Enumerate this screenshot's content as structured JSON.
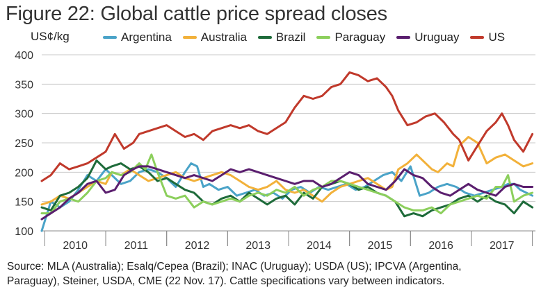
{
  "figure": {
    "title": "Figure 22: Global cattle price spread closes",
    "source_lines": [
      "Source: MLA (Australia); Esalq/Cepea (Brazil); INAC (Uruguay); USDA (US); IPCVA (Argentina,",
      "Paraguay), Steiner, USDA, CME (22 Nov. 17). Cattle specifications vary between indicators."
    ]
  },
  "chart_data": {
    "type": "line",
    "title": "Figure 22: Global cattle price spread closes",
    "ylabel": "US¢/kg",
    "xlabel": "",
    "ylim": [
      100,
      400
    ],
    "yticks": [
      100,
      150,
      200,
      250,
      300,
      350,
      400
    ],
    "xlim": [
      2009.45,
      2017.55
    ],
    "xticks": [
      "2010",
      "2011",
      "2012",
      "2013",
      "2014",
      "2015",
      "2016",
      "2017"
    ],
    "grid": "horizontal",
    "legend_position": "top",
    "series": [
      {
        "name": "Argentina",
        "color": "#4aa3c8",
        "x": [
          2009.45,
          2009.6,
          2009.75,
          2009.9,
          2010.05,
          2010.2,
          2010.35,
          2010.5,
          2010.6,
          2010.75,
          2010.9,
          2011.05,
          2011.2,
          2011.35,
          2011.5,
          2011.65,
          2011.8,
          2011.9,
          2012.0,
          2012.1,
          2012.2,
          2012.35,
          2012.5,
          2012.65,
          2012.8,
          2012.95,
          2013.1,
          2013.25,
          2013.4,
          2013.55,
          2013.7,
          2013.85,
          2014.0,
          2014.15,
          2014.3,
          2014.45,
          2014.6,
          2014.75,
          2014.9,
          2015.05,
          2015.2,
          2015.35,
          2015.5,
          2015.65,
          2015.8,
          2015.95,
          2016.1,
          2016.25,
          2016.4,
          2016.55,
          2016.7,
          2016.85,
          2017.0,
          2017.1,
          2017.2,
          2017.3,
          2017.4,
          2017.5
        ],
        "y": [
          100,
          150,
          140,
          150,
          170,
          195,
          185,
          205,
          195,
          180,
          185,
          200,
          205,
          200,
          190,
          175,
          200,
          215,
          210,
          175,
          180,
          170,
          175,
          160,
          165,
          170,
          160,
          165,
          155,
          170,
          175,
          165,
          175,
          170,
          175,
          180,
          170,
          175,
          185,
          195,
          200,
          185,
          210,
          160,
          165,
          175,
          180,
          175,
          165,
          160,
          165,
          170,
          175,
          180,
          180,
          170,
          165,
          160
        ]
      },
      {
        "name": "Australia",
        "color": "#f2b13a",
        "x": [
          2009.45,
          2009.6,
          2009.75,
          2009.9,
          2010.05,
          2010.2,
          2010.35,
          2010.5,
          2010.6,
          2010.75,
          2010.9,
          2011.05,
          2011.2,
          2011.35,
          2011.5,
          2011.65,
          2011.8,
          2011.95,
          2012.1,
          2012.25,
          2012.4,
          2012.55,
          2012.7,
          2012.85,
          2013.0,
          2013.15,
          2013.3,
          2013.45,
          2013.6,
          2013.75,
          2013.9,
          2014.05,
          2014.2,
          2014.35,
          2014.5,
          2014.65,
          2014.8,
          2014.95,
          2015.1,
          2015.2,
          2015.3,
          2015.45,
          2015.6,
          2015.75,
          2015.85,
          2015.95,
          2016.1,
          2016.2,
          2016.3,
          2016.45,
          2016.6,
          2016.75,
          2016.9,
          2017.05,
          2017.2,
          2017.35,
          2017.5
        ],
        "y": [
          145,
          150,
          160,
          155,
          165,
          175,
          185,
          180,
          200,
          195,
          205,
          195,
          185,
          190,
          195,
          200,
          190,
          185,
          190,
          195,
          200,
          195,
          185,
          175,
          170,
          175,
          185,
          170,
          165,
          170,
          160,
          150,
          165,
          175,
          180,
          185,
          190,
          180,
          170,
          175,
          205,
          215,
          230,
          215,
          205,
          200,
          215,
          210,
          245,
          260,
          250,
          215,
          225,
          230,
          220,
          210,
          215
        ]
      },
      {
        "name": "Brazil",
        "color": "#1e6b3a",
        "x": [
          2009.45,
          2009.6,
          2009.75,
          2009.9,
          2010.05,
          2010.2,
          2010.35,
          2010.5,
          2010.6,
          2010.75,
          2010.9,
          2011.05,
          2011.2,
          2011.35,
          2011.5,
          2011.65,
          2011.8,
          2011.95,
          2012.1,
          2012.25,
          2012.4,
          2012.55,
          2012.7,
          2012.85,
          2013.0,
          2013.15,
          2013.3,
          2013.45,
          2013.6,
          2013.75,
          2013.9,
          2014.05,
          2014.2,
          2014.35,
          2014.5,
          2014.65,
          2014.8,
          2014.95,
          2015.1,
          2015.25,
          2015.4,
          2015.55,
          2015.7,
          2015.85,
          2016.0,
          2016.15,
          2016.3,
          2016.45,
          2016.6,
          2016.75,
          2016.9,
          2017.05,
          2017.2,
          2017.35,
          2017.5
        ],
        "y": [
          140,
          135,
          160,
          165,
          175,
          190,
          220,
          205,
          210,
          215,
          205,
          210,
          200,
          185,
          190,
          180,
          170,
          165,
          150,
          145,
          155,
          160,
          150,
          165,
          155,
          145,
          155,
          160,
          145,
          165,
          155,
          175,
          180,
          185,
          180,
          170,
          175,
          165,
          160,
          150,
          125,
          130,
          125,
          135,
          140,
          145,
          155,
          160,
          150,
          160,
          150,
          145,
          130,
          150,
          140
        ]
      },
      {
        "name": "Paraguay",
        "color": "#8ccf5c",
        "x": [
          2009.45,
          2009.6,
          2009.75,
          2009.9,
          2010.05,
          2010.2,
          2010.35,
          2010.5,
          2010.6,
          2010.75,
          2010.9,
          2011.05,
          2011.15,
          2011.25,
          2011.35,
          2011.5,
          2011.65,
          2011.8,
          2011.95,
          2012.1,
          2012.25,
          2012.4,
          2012.55,
          2012.7,
          2012.85,
          2013.0,
          2013.15,
          2013.3,
          2013.45,
          2013.6,
          2013.75,
          2013.9,
          2014.05,
          2014.2,
          2014.35,
          2014.5,
          2014.65,
          2014.8,
          2014.95,
          2015.1,
          2015.25,
          2015.4,
          2015.55,
          2015.7,
          2015.85,
          2016.0,
          2016.15,
          2016.3,
          2016.45,
          2016.6,
          2016.75,
          2016.9,
          2017.0,
          2017.1,
          2017.2,
          2017.35,
          2017.5
        ],
        "y": [
          130,
          130,
          150,
          155,
          150,
          165,
          185,
          190,
          200,
          195,
          200,
          215,
          205,
          230,
          200,
          160,
          155,
          160,
          140,
          150,
          145,
          150,
          155,
          150,
          160,
          165,
          160,
          170,
          165,
          175,
          160,
          170,
          175,
          185,
          185,
          180,
          175,
          170,
          165,
          160,
          150,
          140,
          135,
          135,
          140,
          130,
          145,
          150,
          155,
          160,
          155,
          175,
          175,
          195,
          150,
          160,
          165
        ]
      },
      {
        "name": "Uruguay",
        "color": "#5a1e6e",
        "x": [
          2009.45,
          2009.6,
          2009.75,
          2009.9,
          2010.05,
          2010.2,
          2010.35,
          2010.5,
          2010.65,
          2010.8,
          2010.95,
          2011.05,
          2011.2,
          2011.35,
          2011.5,
          2011.65,
          2011.8,
          2011.95,
          2012.1,
          2012.25,
          2012.4,
          2012.55,
          2012.7,
          2012.85,
          2013.0,
          2013.15,
          2013.3,
          2013.45,
          2013.6,
          2013.75,
          2013.9,
          2014.05,
          2014.2,
          2014.35,
          2014.5,
          2014.65,
          2014.8,
          2014.95,
          2015.1,
          2015.25,
          2015.4,
          2015.55,
          2015.7,
          2015.85,
          2016.0,
          2016.15,
          2016.3,
          2016.45,
          2016.6,
          2016.75,
          2016.9,
          2017.05,
          2017.2,
          2017.35,
          2017.5
        ],
        "y": [
          120,
          130,
          140,
          155,
          165,
          180,
          185,
          165,
          170,
          195,
          205,
          210,
          210,
          205,
          200,
          195,
          190,
          195,
          190,
          185,
          195,
          205,
          200,
          205,
          200,
          195,
          190,
          185,
          180,
          185,
          185,
          175,
          180,
          190,
          200,
          195,
          180,
          175,
          170,
          185,
          205,
          195,
          190,
          175,
          165,
          160,
          170,
          180,
          170,
          165,
          160,
          175,
          180,
          175,
          175
        ]
      },
      {
        "name": "US",
        "color": "#c0392b",
        "x": [
          2009.45,
          2009.6,
          2009.75,
          2009.9,
          2010.05,
          2010.2,
          2010.35,
          2010.5,
          2010.65,
          2010.8,
          2010.95,
          2011.05,
          2011.2,
          2011.35,
          2011.5,
          2011.65,
          2011.8,
          2011.95,
          2012.1,
          2012.25,
          2012.4,
          2012.55,
          2012.7,
          2012.85,
          2013.0,
          2013.15,
          2013.3,
          2013.45,
          2013.6,
          2013.75,
          2013.9,
          2014.05,
          2014.2,
          2014.35,
          2014.5,
          2014.65,
          2014.8,
          2014.95,
          2015.1,
          2015.2,
          2015.3,
          2015.45,
          2015.6,
          2015.75,
          2015.9,
          2016.05,
          2016.2,
          2016.3,
          2016.45,
          2016.6,
          2016.75,
          2016.9,
          2017.0,
          2017.1,
          2017.2,
          2017.35,
          2017.5
        ],
        "y": [
          185,
          195,
          215,
          205,
          210,
          215,
          225,
          235,
          265,
          240,
          250,
          265,
          270,
          275,
          280,
          270,
          260,
          265,
          255,
          270,
          275,
          280,
          275,
          280,
          270,
          265,
          275,
          285,
          310,
          330,
          325,
          330,
          345,
          350,
          370,
          365,
          355,
          360,
          345,
          330,
          305,
          280,
          285,
          295,
          300,
          285,
          265,
          255,
          220,
          245,
          270,
          285,
          300,
          280,
          255,
          235,
          265
        ]
      }
    ]
  }
}
